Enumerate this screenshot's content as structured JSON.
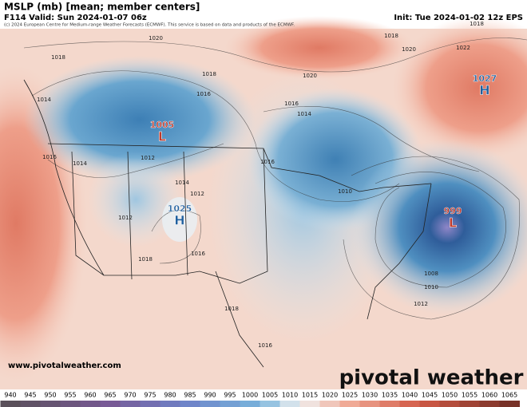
{
  "header": {
    "title": "MSLP (mb) [mean; member centers]",
    "valid": "F114 Valid: Sun 2024-01-07 06z",
    "init": "Init: Tue 2024-01-02 12z EPS",
    "copyright": "(c) 2024 European Centre for Medium-range Weather Forecasts (ECMWF). This service is based on data and products of the ECMWF."
  },
  "centers": [
    {
      "value": "1005",
      "letter": "L"
    },
    {
      "value": "1025",
      "letter": "H"
    },
    {
      "value": "1027",
      "letter": "H"
    },
    {
      "value": "999",
      "letter": "L"
    }
  ],
  "isobar_labels": [
    "1020",
    "1018",
    "1014",
    "1016",
    "1014",
    "1012",
    "1016",
    "1018",
    "1016",
    "1014",
    "1020",
    "1018",
    "1020",
    "1022",
    "1018",
    "1010",
    "1008",
    "1010",
    "1012",
    "1018",
    "1016",
    "1018",
    "1016",
    "1012",
    "1014",
    "1012",
    "1016"
  ],
  "website": "www.pivotalweather.com",
  "brand": "pivotal weather",
  "colorbar": [
    "940",
    "945",
    "950",
    "955",
    "960",
    "965",
    "970",
    "975",
    "980",
    "985",
    "990",
    "995",
    "1000",
    "1005",
    "1010",
    "1015",
    "1020",
    "1025",
    "1030",
    "1035",
    "1040",
    "1045",
    "1050",
    "1055",
    "1060",
    "1065"
  ]
}
